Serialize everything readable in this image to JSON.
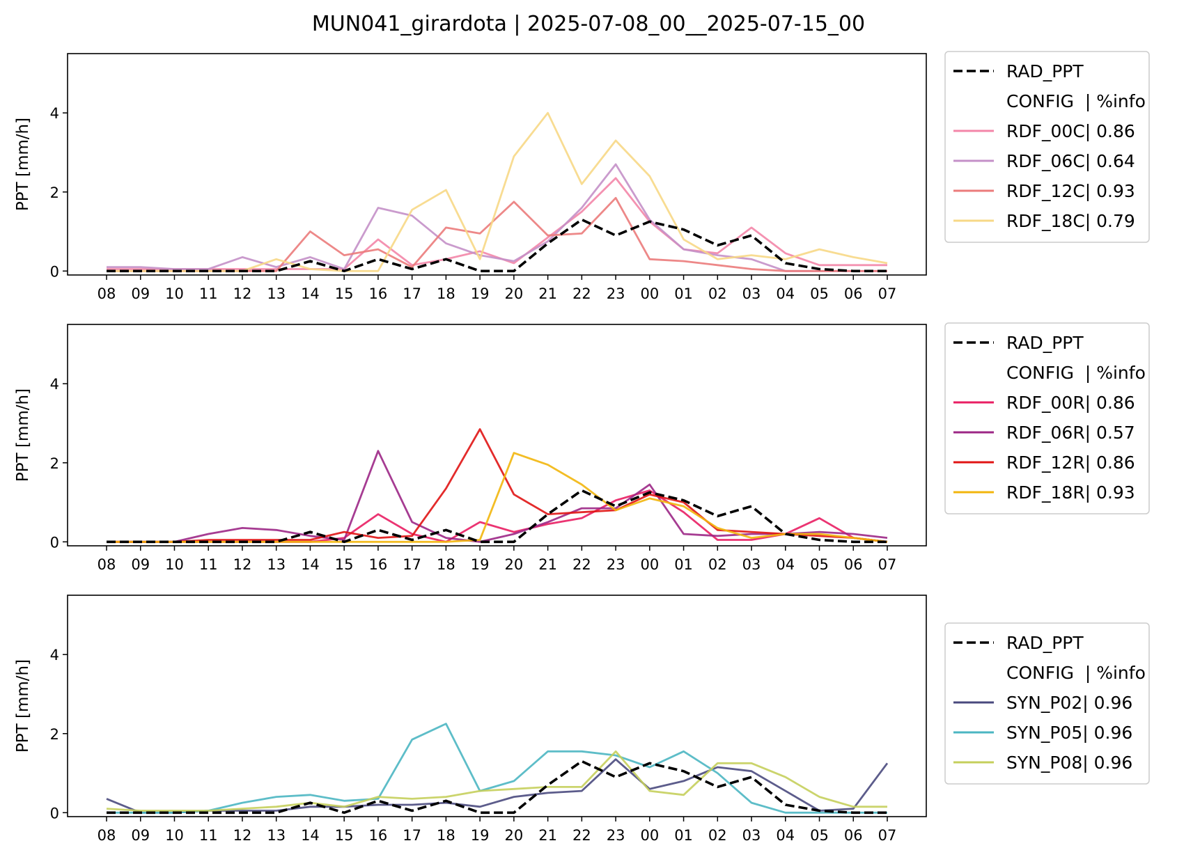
{
  "figure": {
    "title": "MUN041_girardota | 2025-07-08_00__2025-07-15_00"
  },
  "chart_data": [
    {
      "type": "line",
      "ylabel": "PPT [mm/h]",
      "xlabel": "",
      "ylim": [
        -0.1,
        5.5
      ],
      "yticks": [
        0,
        2,
        4
      ],
      "categories": [
        "08",
        "09",
        "10",
        "11",
        "12",
        "13",
        "14",
        "15",
        "16",
        "17",
        "18",
        "19",
        "20",
        "21",
        "22",
        "23",
        "00",
        "01",
        "02",
        "03",
        "04",
        "05",
        "06",
        "07"
      ],
      "legend_position": "right",
      "legend_header": "CONFIG  | %info",
      "series": [
        {
          "name": "RAD_PPT",
          "color": "#000000",
          "dashed": true,
          "values": [
            0,
            0,
            0,
            0,
            0,
            0,
            0.25,
            0,
            0.3,
            0.05,
            0.3,
            0,
            0,
            0.7,
            1.3,
            0.9,
            1.25,
            1.05,
            0.65,
            0.9,
            0.2,
            0.05,
            0,
            0
          ]
        },
        {
          "name": "RDF_00C| 0.86",
          "color": "#F386A8",
          "values": [
            0.05,
            0.05,
            0.05,
            0.05,
            0.05,
            0.05,
            0.05,
            0.05,
            0.8,
            0.15,
            0.3,
            0.5,
            0.2,
            0.85,
            1.5,
            2.35,
            1.25,
            0.55,
            0.45,
            1.1,
            0.45,
            0.15,
            0.15,
            0.15
          ]
        },
        {
          "name": "RDF_06C| 0.64",
          "color": "#C490C8",
          "values": [
            0.1,
            0.1,
            0.05,
            0.05,
            0.35,
            0.1,
            0.35,
            0.05,
            1.6,
            1.4,
            0.7,
            0.4,
            0.25,
            0.75,
            1.6,
            2.7,
            1.3,
            0.55,
            0.4,
            0.3,
            0,
            0,
            0,
            0
          ]
        },
        {
          "name": "RDF_12C| 0.93",
          "color": "#EB7B7B",
          "values": [
            0,
            0,
            0,
            0,
            0,
            0,
            1.0,
            0.4,
            0.55,
            0.1,
            1.1,
            0.95,
            1.75,
            0.9,
            0.95,
            1.85,
            0.3,
            0.25,
            0.15,
            0.05,
            0,
            0,
            0,
            0
          ]
        },
        {
          "name": "RDF_18C| 0.79",
          "color": "#F7D886",
          "values": [
            0,
            0,
            0,
            0,
            0,
            0.3,
            0.05,
            0,
            0,
            1.55,
            2.05,
            0.3,
            2.9,
            4.0,
            2.2,
            3.3,
            2.4,
            0.8,
            0.3,
            0.4,
            0.3,
            0.55,
            0.35,
            0.2
          ]
        }
      ]
    },
    {
      "type": "line",
      "ylabel": "PPT [mm/h]",
      "xlabel": "",
      "ylim": [
        -0.1,
        5.5
      ],
      "yticks": [
        0,
        2,
        4
      ],
      "categories": [
        "08",
        "09",
        "10",
        "11",
        "12",
        "13",
        "14",
        "15",
        "16",
        "17",
        "18",
        "19",
        "20",
        "21",
        "22",
        "23",
        "00",
        "01",
        "02",
        "03",
        "04",
        "05",
        "06",
        "07"
      ],
      "legend_position": "right",
      "legend_header": "CONFIG  | %info",
      "series": [
        {
          "name": "RAD_PPT",
          "color": "#000000",
          "dashed": true,
          "values": [
            0,
            0,
            0,
            0,
            0,
            0,
            0.25,
            0,
            0.3,
            0.05,
            0.3,
            0,
            0,
            0.7,
            1.3,
            0.9,
            1.25,
            1.05,
            0.65,
            0.9,
            0.2,
            0.05,
            0,
            0
          ]
        },
        {
          "name": "RDF_00R| 0.86",
          "color": "#E91E63",
          "values": [
            0,
            0,
            0,
            0,
            0,
            0,
            0,
            0.1,
            0.7,
            0.2,
            0,
            0.5,
            0.25,
            0.45,
            0.6,
            1.05,
            1.3,
            0.75,
            0.05,
            0.05,
            0.2,
            0.6,
            0.1,
            0
          ]
        },
        {
          "name": "RDF_06R| 0.57",
          "color": "#9C2786",
          "values": [
            0,
            0,
            0,
            0.2,
            0.35,
            0.3,
            0.15,
            0.05,
            2.3,
            0.5,
            0.1,
            0,
            0.2,
            0.5,
            0.85,
            0.85,
            1.45,
            0.2,
            0.15,
            0.2,
            0.2,
            0.25,
            0.2,
            0.1
          ]
        },
        {
          "name": "RDF_12R| 0.86",
          "color": "#E01414",
          "values": [
            0,
            0,
            0,
            0.05,
            0.05,
            0.05,
            0.05,
            0.25,
            0.1,
            0.15,
            1.35,
            2.85,
            1.2,
            0.7,
            0.75,
            0.8,
            1.2,
            1.0,
            0.3,
            0.25,
            0.2,
            0.15,
            0.1,
            0
          ]
        },
        {
          "name": "RDF_18R| 0.93",
          "color": "#F2B60D",
          "values": [
            0,
            0,
            0,
            0,
            0,
            0,
            0,
            0,
            0,
            0,
            0,
            0.05,
            2.25,
            1.95,
            1.45,
            0.8,
            1.1,
            0.9,
            0.35,
            0.1,
            0.2,
            0.2,
            0.1,
            0
          ]
        }
      ]
    },
    {
      "type": "line",
      "ylabel": "PPT [mm/h]",
      "xlabel": "",
      "ylim": [
        -0.1,
        5.5
      ],
      "yticks": [
        0,
        2,
        4
      ],
      "categories": [
        "08",
        "09",
        "10",
        "11",
        "12",
        "13",
        "14",
        "15",
        "16",
        "17",
        "18",
        "19",
        "20",
        "21",
        "22",
        "23",
        "00",
        "01",
        "02",
        "03",
        "04",
        "05",
        "06",
        "07"
      ],
      "legend_position": "right",
      "legend_header": "CONFIG  | %info",
      "series": [
        {
          "name": "RAD_PPT",
          "color": "#000000",
          "dashed": true,
          "values": [
            0,
            0,
            0,
            0,
            0,
            0,
            0.25,
            0,
            0.3,
            0.05,
            0.3,
            0,
            0,
            0.7,
            1.3,
            0.9,
            1.25,
            1.05,
            0.65,
            0.9,
            0.2,
            0.05,
            0,
            0
          ]
        },
        {
          "name": "SYN_P02| 0.96",
          "color": "#4A4A7E",
          "values": [
            0.35,
            0,
            0,
            0.05,
            0.05,
            0.05,
            0.15,
            0.15,
            0.2,
            0.2,
            0.25,
            0.15,
            0.4,
            0.5,
            0.55,
            1.35,
            0.6,
            0.8,
            1.15,
            1.05,
            0.55,
            0.05,
            0.1,
            1.25
          ]
        },
        {
          "name": "SYN_P05| 0.96",
          "color": "#4BB6C2",
          "values": [
            0,
            0,
            0,
            0.05,
            0.25,
            0.4,
            0.45,
            0.3,
            0.35,
            1.85,
            2.25,
            0.55,
            0.8,
            1.55,
            1.55,
            1.45,
            1.15,
            1.55,
            1.0,
            0.25,
            0,
            0,
            0,
            0
          ]
        },
        {
          "name": "SYN_P08| 0.96",
          "color": "#C5CF5C",
          "values": [
            0.1,
            0.05,
            0.05,
            0.05,
            0.1,
            0.15,
            0.25,
            0.15,
            0.4,
            0.35,
            0.4,
            0.55,
            0.6,
            0.65,
            0.65,
            1.55,
            0.55,
            0.45,
            1.25,
            1.25,
            0.9,
            0.4,
            0.15,
            0.15
          ]
        }
      ]
    }
  ]
}
